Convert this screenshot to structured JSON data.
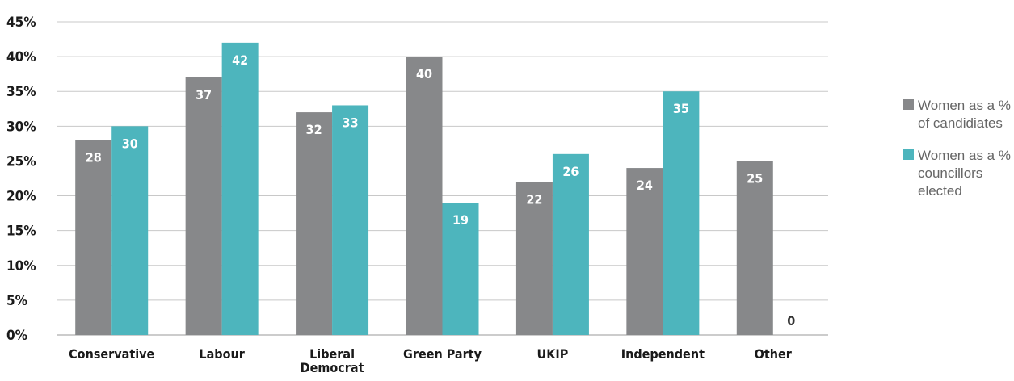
{
  "chart_data": {
    "type": "bar",
    "categories": [
      "Conservative",
      "Labour",
      "Liberal Democrat",
      "Green Party",
      "UKIP",
      "Independent",
      "Other"
    ],
    "series": [
      {
        "name": "Women as a % of candidiates",
        "color": "#87888a",
        "values": [
          28,
          37,
          32,
          40,
          22,
          24,
          25
        ]
      },
      {
        "name": "Women as a % councillors elected",
        "color": "#4db5bd",
        "values": [
          30,
          42,
          33,
          19,
          26,
          35,
          0
        ]
      }
    ],
    "ylim": [
      0,
      45
    ],
    "yticks": [
      "0%",
      "5%",
      "10%",
      "15%",
      "20%",
      "25%",
      "30%",
      "35%",
      "40%",
      "45%"
    ],
    "xlabel": "",
    "ylabel": "",
    "grid": true,
    "legend_position": "right"
  }
}
